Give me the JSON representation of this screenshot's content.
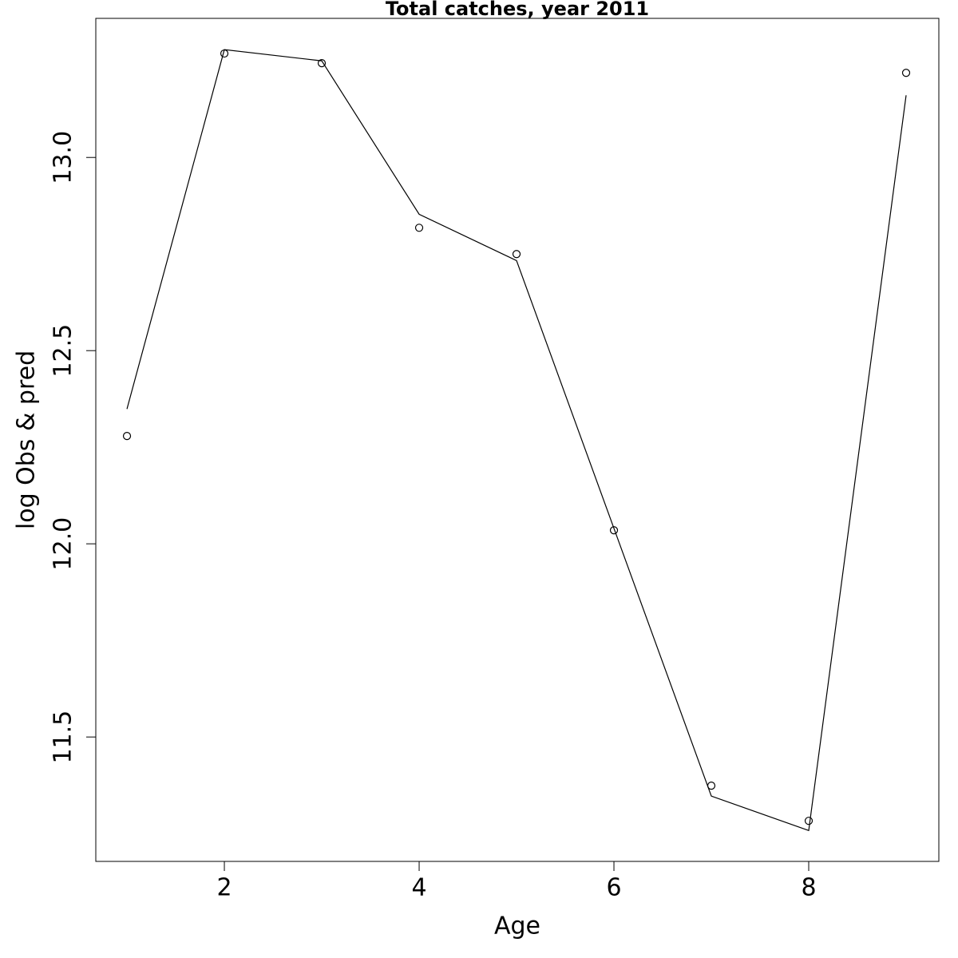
{
  "chart_data": {
    "type": "line",
    "title": "Total catches, year 2011",
    "x_label": "Age",
    "y_label": "log Obs & pred",
    "x": [
      1,
      2,
      3,
      4,
      5,
      6,
      7,
      8,
      9
    ],
    "series": [
      {
        "color": "#000000",
        "marker": "circle",
        "line": false,
        "values": [
          12.279,
          13.269,
          13.244,
          12.818,
          12.75,
          12.035,
          11.374,
          11.283,
          13.219
        ]
      },
      {
        "color": "#000000",
        "marker": "none",
        "line": true,
        "values": [
          12.349,
          13.279,
          13.25,
          12.853,
          12.733,
          12.04,
          11.347,
          11.258,
          13.161
        ]
      }
    ],
    "xlim": [
      0.68,
      9.336
    ],
    "ylim": [
      11.178,
      13.36
    ],
    "xticks": [
      2,
      4,
      6,
      8
    ],
    "yticks": [
      11.5,
      {
        "value": 12,
        "label": "12.0"
      },
      12.5,
      {
        "value": 13,
        "label": "13.0"
      }
    ]
  }
}
